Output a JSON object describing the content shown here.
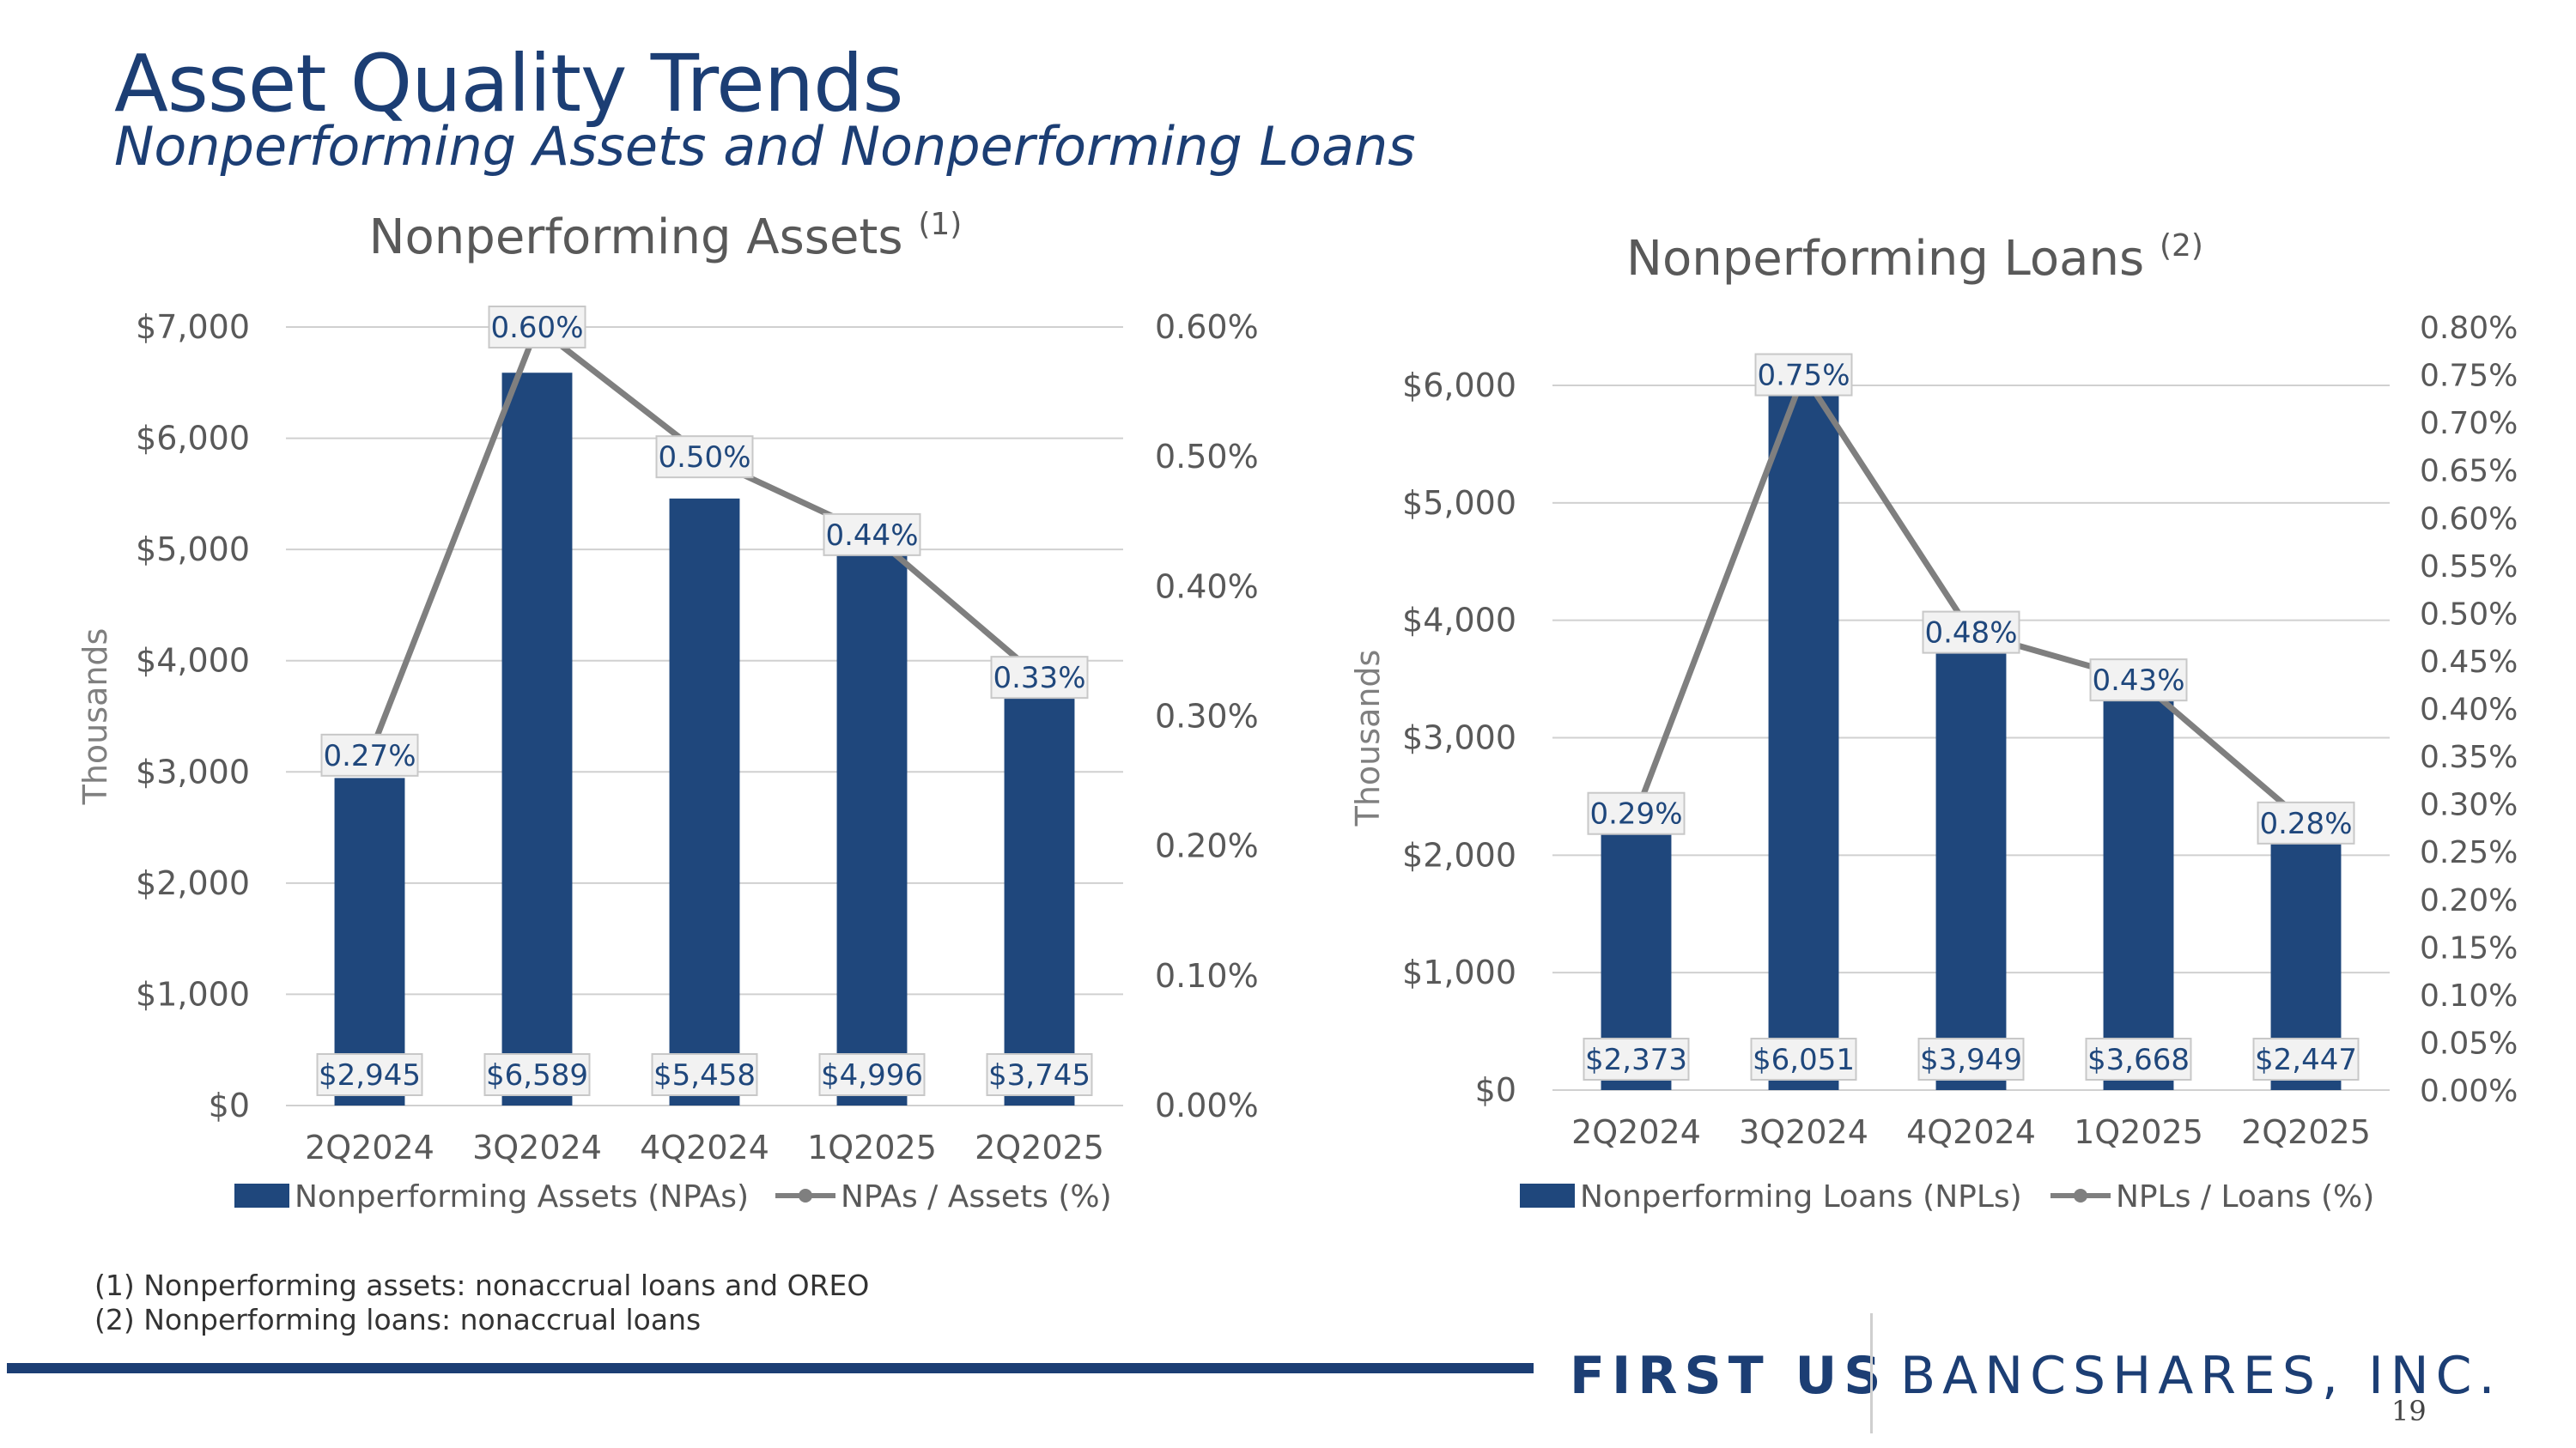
{
  "header": {
    "title": "Asset Quality Trends",
    "subtitle": "Nonperforming Assets and Nonperforming Loans"
  },
  "chart_data": [
    {
      "type": "bar",
      "title": "Nonperforming Assets",
      "title_note": "(1)",
      "ylabel": "Thousands",
      "categories": [
        "2Q2024",
        "3Q2024",
        "4Q2024",
        "1Q2025",
        "2Q2025"
      ],
      "ylim": [
        0,
        7000
      ],
      "y_ticks": [
        "$0",
        "$1,000",
        "$2,000",
        "$3,000",
        "$4,000",
        "$5,000",
        "$6,000",
        "$7,000"
      ],
      "y2lim": [
        0,
        0.6
      ],
      "y2_ticks": [
        "0.00%",
        "0.10%",
        "0.20%",
        "0.30%",
        "0.40%",
        "0.50%",
        "0.60%"
      ],
      "series": [
        {
          "name": "Nonperforming Assets (NPAs)",
          "kind": "bar",
          "axis": "left",
          "values": [
            2945,
            6589,
            5458,
            4996,
            3745
          ],
          "labels": [
            "$2,945",
            "$6,589",
            "$5,458",
            "$4,996",
            "$3,745"
          ]
        },
        {
          "name": "NPAs / Assets (%)",
          "kind": "line",
          "axis": "right",
          "values": [
            0.27,
            0.6,
            0.5,
            0.44,
            0.33
          ],
          "labels": [
            "0.27%",
            "0.60%",
            "0.50%",
            "0.44%",
            "0.33%"
          ]
        }
      ],
      "legend": "bottom",
      "grid": true,
      "colors": {
        "bar": "#1f477c",
        "line": "#7f7f7f"
      }
    },
    {
      "type": "bar",
      "title": "Nonperforming Loans",
      "title_note": "(2)",
      "ylabel": "Thousands",
      "categories": [
        "2Q2024",
        "3Q2024",
        "4Q2024",
        "1Q2025",
        "2Q2025"
      ],
      "ylim": [
        0,
        6000
      ],
      "y_ticks": [
        "$0",
        "$1,000",
        "$2,000",
        "$3,000",
        "$4,000",
        "$5,000",
        "$6,000"
      ],
      "y2lim": [
        0,
        0.8
      ],
      "y2_ticks": [
        "0.00%",
        "0.05%",
        "0.10%",
        "0.15%",
        "0.20%",
        "0.25%",
        "0.30%",
        "0.35%",
        "0.40%",
        "0.45%",
        "0.50%",
        "0.55%",
        "0.60%",
        "0.65%",
        "0.70%",
        "0.75%",
        "0.80%"
      ],
      "series": [
        {
          "name": "Nonperforming Loans (NPLs)",
          "kind": "bar",
          "axis": "left",
          "values": [
            2373,
            6051,
            3949,
            3668,
            2447
          ],
          "labels": [
            "$2,373",
            "$6,051",
            "$3,949",
            "$3,668",
            "$2,447"
          ]
        },
        {
          "name": "NPLs / Loans (%)",
          "kind": "line",
          "axis": "right",
          "values": [
            0.29,
            0.75,
            0.48,
            0.43,
            0.28
          ],
          "labels": [
            "0.29%",
            "0.75%",
            "0.48%",
            "0.43%",
            "0.28%"
          ]
        }
      ],
      "legend": "bottom",
      "grid": true,
      "colors": {
        "bar": "#1f477c",
        "line": "#7f7f7f"
      }
    }
  ],
  "footnotes": [
    "(1)  Nonperforming assets: nonaccrual loans and OREO",
    "(2)  Nonperforming loans: nonaccrual loans"
  ],
  "logo": {
    "first": "FIRST US",
    "rest": "BANCSHARES, INC."
  },
  "page_number": "19"
}
